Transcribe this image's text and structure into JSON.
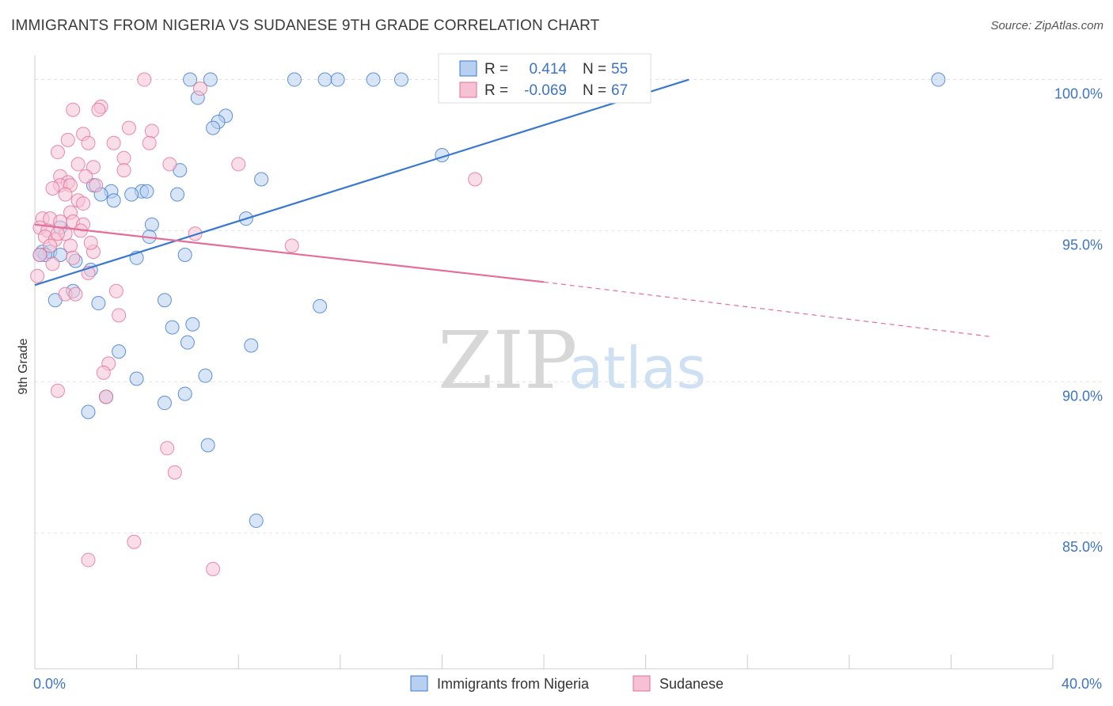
{
  "title": "IMMIGRANTS FROM NIGERIA VS SUDANESE 9TH GRADE CORRELATION CHART",
  "source": "Source: ZipAtlas.com",
  "watermark": {
    "zip": "ZIP",
    "atlas": "atlas"
  },
  "colors": {
    "blue": "#3a78cf",
    "blue_fill": "#b7cff0",
    "pink": "#e46e98",
    "pink_fill": "#f6c2d3",
    "tick_text": "#3d74c5",
    "grid": "#e3e3e3"
  },
  "legend": {
    "rows": [
      {
        "r_label": "R =",
        "r_value": "0.414",
        "n_label": "N =",
        "n_value": "55"
      },
      {
        "r_label": "R =",
        "r_value": "-0.069",
        "n_label": "N =",
        "n_value": "67"
      }
    ]
  },
  "chart_data": {
    "type": "scatter",
    "ylabel": "9th Grade",
    "xlim": [
      0,
      40
    ],
    "ylim": [
      80.5,
      100.8
    ],
    "x_tick_labels": [
      {
        "value": 0,
        "label": "0.0%"
      },
      {
        "value": 40,
        "label": "40.0%"
      }
    ],
    "y_tick_labels": [
      {
        "value": 100,
        "label": "100.0%"
      },
      {
        "value": 95,
        "label": "95.0%"
      },
      {
        "value": 90,
        "label": "90.0%"
      },
      {
        "value": 85,
        "label": "85.0%"
      }
    ],
    "series": [
      {
        "name": "Immigrants from Nigeria",
        "color": "#3a78cf",
        "trend": {
          "x0": 0,
          "y0": 93.2,
          "x1": 25.7,
          "y1": 100.0,
          "dash_to": null
        },
        "points": [
          [
            6.1,
            100
          ],
          [
            6.9,
            100
          ],
          [
            10.2,
            100
          ],
          [
            11.4,
            100
          ],
          [
            11.9,
            100
          ],
          [
            13.3,
            100
          ],
          [
            14.4,
            100
          ],
          [
            16.5,
            100
          ],
          [
            35.5,
            100
          ],
          [
            6.4,
            99.4
          ],
          [
            7.5,
            98.8
          ],
          [
            7.2,
            98.6
          ],
          [
            7.0,
            98.4
          ],
          [
            16.0,
            97.5
          ],
          [
            5.7,
            97.0
          ],
          [
            8.9,
            96.7
          ],
          [
            2.3,
            96.5
          ],
          [
            3.0,
            96.3
          ],
          [
            2.6,
            96.2
          ],
          [
            4.2,
            96.3
          ],
          [
            4.4,
            96.3
          ],
          [
            5.6,
            96.2
          ],
          [
            3.1,
            96.0
          ],
          [
            8.3,
            95.4
          ],
          [
            4.6,
            95.2
          ],
          [
            1.0,
            95.1
          ],
          [
            4.5,
            94.8
          ],
          [
            0.3,
            94.3
          ],
          [
            0.6,
            94.3
          ],
          [
            0.4,
            94.2
          ],
          [
            5.9,
            94.2
          ],
          [
            4.0,
            94.1
          ],
          [
            1.6,
            94.0
          ],
          [
            0.2,
            94.2
          ],
          [
            2.2,
            93.7
          ],
          [
            1.5,
            93.0
          ],
          [
            0.8,
            92.7
          ],
          [
            2.5,
            92.6
          ],
          [
            5.1,
            92.7
          ],
          [
            11.2,
            92.5
          ],
          [
            5.4,
            91.8
          ],
          [
            6.2,
            91.9
          ],
          [
            6.0,
            91.3
          ],
          [
            8.5,
            91.2
          ],
          [
            3.3,
            91.0
          ],
          [
            4.0,
            90.1
          ],
          [
            6.7,
            90.2
          ],
          [
            2.8,
            89.5
          ],
          [
            5.9,
            89.6
          ],
          [
            5.1,
            89.3
          ],
          [
            2.1,
            89.0
          ],
          [
            6.8,
            87.9
          ],
          [
            8.7,
            85.4
          ],
          [
            1.0,
            94.2
          ],
          [
            3.8,
            96.2
          ]
        ]
      },
      {
        "name": "Sudanese",
        "color": "#e46e98",
        "trend": {
          "x0": 0,
          "y0": 95.2,
          "x1": 20.0,
          "y1": 93.3,
          "dash_to": {
            "x": 37.5,
            "y": 91.5
          }
        },
        "points": [
          [
            4.3,
            100
          ],
          [
            6.5,
            99.7
          ],
          [
            2.6,
            99.1
          ],
          [
            1.5,
            99.0
          ],
          [
            2.5,
            99.0
          ],
          [
            3.7,
            98.4
          ],
          [
            4.6,
            98.3
          ],
          [
            1.9,
            98.2
          ],
          [
            1.3,
            98.0
          ],
          [
            2.1,
            97.9
          ],
          [
            3.1,
            97.9
          ],
          [
            4.5,
            97.9
          ],
          [
            0.9,
            97.6
          ],
          [
            3.5,
            97.4
          ],
          [
            5.3,
            97.2
          ],
          [
            8.0,
            97.2
          ],
          [
            1.7,
            97.2
          ],
          [
            2.3,
            97.1
          ],
          [
            3.5,
            97.0
          ],
          [
            1.0,
            96.8
          ],
          [
            2.0,
            96.8
          ],
          [
            17.3,
            96.7
          ],
          [
            1.3,
            96.6
          ],
          [
            1.0,
            96.5
          ],
          [
            0.7,
            96.4
          ],
          [
            1.4,
            96.5
          ],
          [
            1.2,
            96.2
          ],
          [
            2.4,
            96.5
          ],
          [
            1.7,
            96.0
          ],
          [
            1.9,
            95.9
          ],
          [
            1.4,
            95.6
          ],
          [
            0.3,
            95.4
          ],
          [
            0.6,
            95.4
          ],
          [
            1.0,
            95.3
          ],
          [
            1.5,
            95.3
          ],
          [
            1.9,
            95.2
          ],
          [
            0.2,
            95.1
          ],
          [
            0.5,
            95.0
          ],
          [
            1.2,
            94.9
          ],
          [
            6.3,
            94.9
          ],
          [
            0.4,
            94.8
          ],
          [
            0.8,
            94.7
          ],
          [
            0.6,
            94.5
          ],
          [
            1.4,
            94.5
          ],
          [
            10.1,
            94.5
          ],
          [
            2.3,
            94.3
          ],
          [
            0.2,
            94.2
          ],
          [
            1.5,
            94.1
          ],
          [
            0.7,
            93.9
          ],
          [
            2.1,
            93.6
          ],
          [
            0.1,
            93.5
          ],
          [
            3.2,
            93.0
          ],
          [
            1.2,
            92.9
          ],
          [
            1.6,
            92.9
          ],
          [
            3.3,
            92.2
          ],
          [
            2.9,
            90.6
          ],
          [
            2.7,
            90.3
          ],
          [
            0.9,
            89.7
          ],
          [
            2.8,
            89.5
          ],
          [
            5.2,
            87.8
          ],
          [
            5.5,
            87.0
          ],
          [
            3.9,
            84.7
          ],
          [
            2.1,
            84.1
          ],
          [
            7.0,
            83.8
          ],
          [
            0.9,
            94.9
          ],
          [
            1.8,
            95.0
          ],
          [
            2.2,
            94.6
          ]
        ]
      }
    ]
  }
}
